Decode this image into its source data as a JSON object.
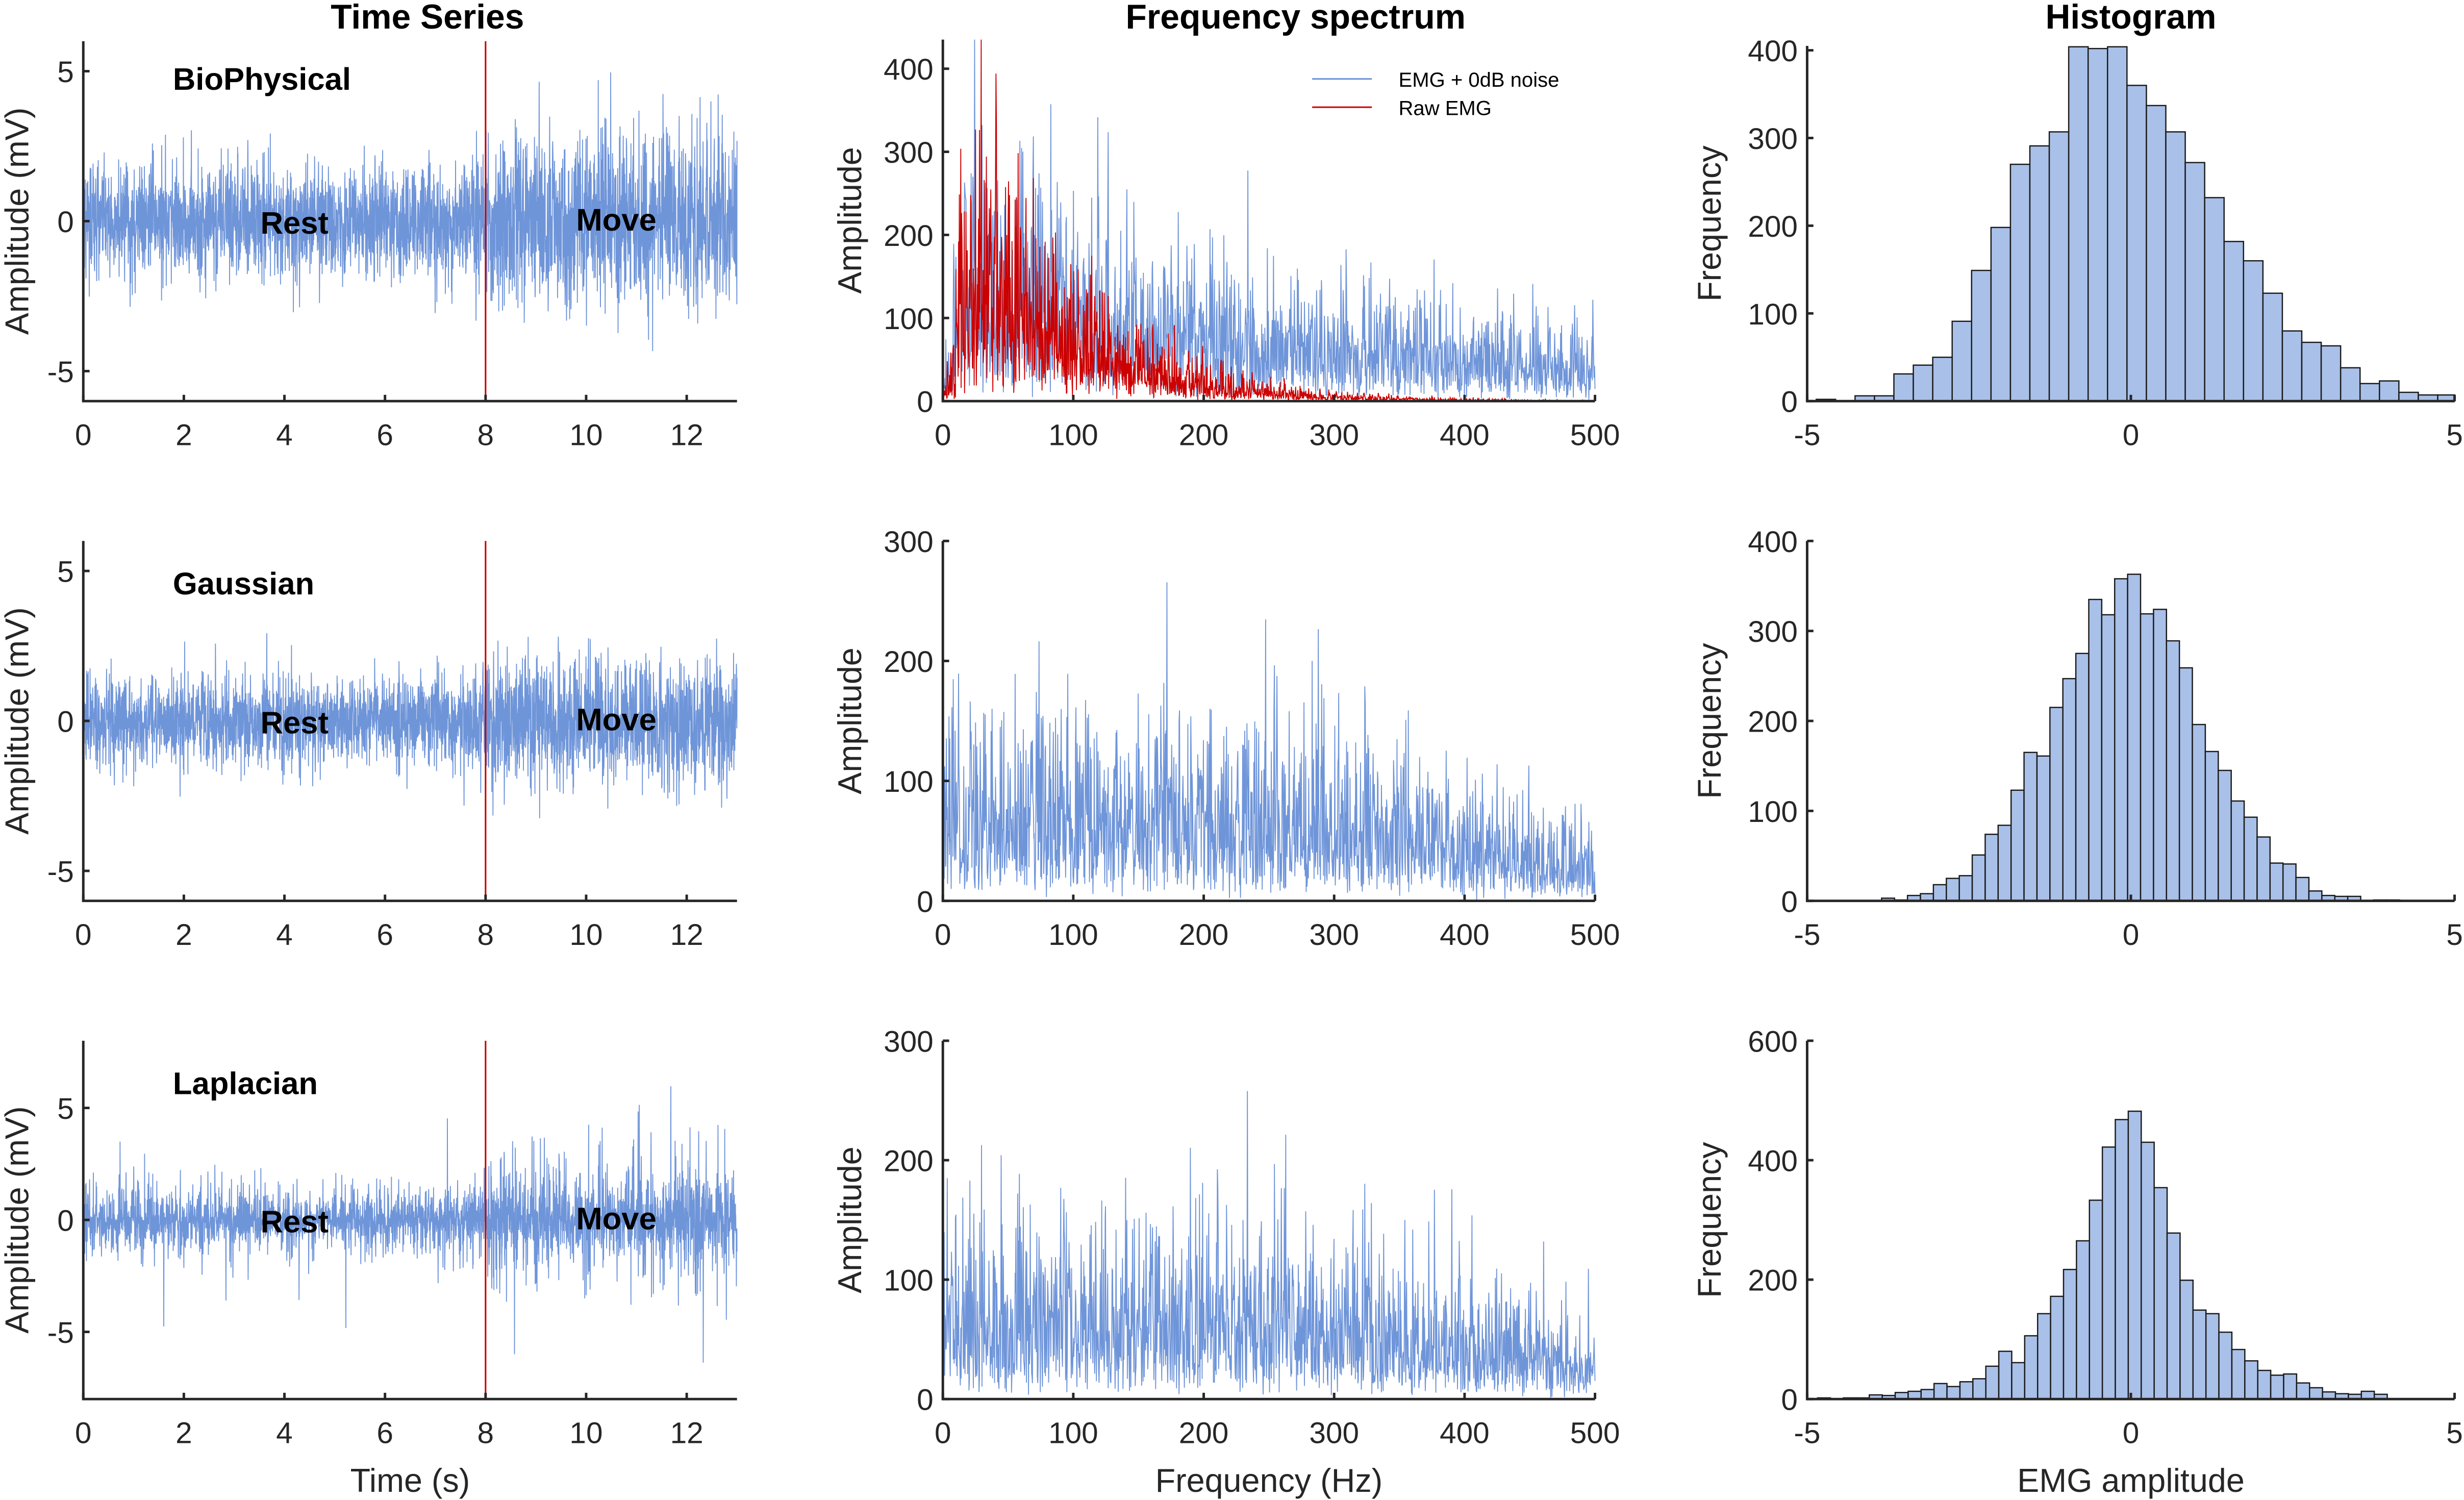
{
  "colors": {
    "signal": "#6f95d9",
    "raw_emg": "#cc0000",
    "event_line": "#cc0000",
    "bar_fill": "#a9c0e8",
    "bar_edge": "#1a1a1a",
    "axis": "#262626"
  },
  "chart_data": [
    {
      "id": "ts-biophysical",
      "type": "line",
      "title": "Time Series",
      "panel_label": "BioPhysical",
      "xlabel": "",
      "ylabel": "Amplitude (mV)",
      "xlim": [
        0,
        13
      ],
      "ylim": [
        -6,
        6
      ],
      "xticks": [
        0,
        2,
        4,
        6,
        8,
        10,
        12
      ],
      "yticks": [
        -5,
        0,
        5
      ],
      "event_marker_x": 8,
      "phase_labels": [
        "Rest",
        "Move"
      ],
      "series": [
        {
          "model": "biophysical"
        }
      ]
    },
    {
      "id": "spec-biophysical",
      "type": "line",
      "title": "Frequency spectrum",
      "xlabel": "",
      "ylabel": "Amplitude",
      "xlim": [
        0,
        500
      ],
      "ylim": [
        0,
        435
      ],
      "xticks": [
        0,
        100,
        200,
        300,
        400,
        500
      ],
      "yticks": [
        0,
        100,
        200,
        300,
        400
      ],
      "legend_position": "top-right",
      "series": [
        {
          "name": "EMG + 0dB noise",
          "color": "#6f95d9"
        },
        {
          "name": "Raw EMG",
          "color": "#cc0000"
        }
      ]
    },
    {
      "id": "hist-biophysical",
      "type": "bar",
      "title": "Histogram",
      "xlabel": "",
      "ylabel": "Frequency",
      "xlim": [
        -5,
        5
      ],
      "ylim": [
        0,
        405
      ],
      "xticks": [
        -5,
        0,
        5
      ],
      "yticks": [
        0,
        100,
        200,
        300,
        400
      ],
      "bins": {
        "start": -4.86,
        "width": 0.3,
        "counts": [
          2,
          0,
          6,
          6,
          31,
          41,
          50,
          91,
          149,
          198,
          270,
          291,
          307,
          404,
          402,
          404,
          360,
          337,
          307,
          272,
          232,
          182,
          160,
          123,
          80,
          67,
          63,
          38,
          20,
          23,
          10,
          7,
          7
        ]
      }
    },
    {
      "id": "ts-gaussian",
      "type": "line",
      "panel_label": "Gaussian",
      "xlabel": "",
      "ylabel": "Amplitude (mV)",
      "xlim": [
        0,
        13
      ],
      "ylim": [
        -6,
        6
      ],
      "xticks": [
        0,
        2,
        4,
        6,
        8,
        10,
        12
      ],
      "yticks": [
        -5,
        0,
        5
      ],
      "event_marker_x": 8,
      "phase_labels": [
        "Rest",
        "Move"
      ],
      "series": [
        {
          "model": "gaussian"
        }
      ]
    },
    {
      "id": "spec-gaussian",
      "type": "line",
      "xlabel": "",
      "ylabel": "Amplitude",
      "xlim": [
        0,
        500
      ],
      "ylim": [
        0,
        300
      ],
      "xticks": [
        0,
        100,
        200,
        300,
        400,
        500
      ],
      "yticks": [
        0,
        100,
        200,
        300
      ]
    },
    {
      "id": "hist-gaussian",
      "type": "bar",
      "xlabel": "",
      "ylabel": "Frequency",
      "xlim": [
        -5,
        5
      ],
      "ylim": [
        0,
        400
      ],
      "xticks": [
        -5,
        0,
        5
      ],
      "yticks": [
        0,
        100,
        200,
        300,
        400
      ],
      "bins": {
        "start": -3.85,
        "width": 0.2,
        "counts": [
          3,
          1,
          6,
          8,
          18,
          25,
          28,
          51,
          74,
          84,
          123,
          165,
          161,
          215,
          247,
          275,
          335,
          318,
          358,
          363,
          319,
          324,
          289,
          259,
          196,
          166,
          145,
          111,
          93,
          71,
          42,
          41,
          26,
          11,
          6,
          5,
          5,
          0,
          1,
          1
        ]
      }
    },
    {
      "id": "ts-laplacian",
      "type": "line",
      "panel_label": "Laplacian",
      "xlabel": "Time (s)",
      "ylabel": "Amplitude (mV)",
      "xlim": [
        0,
        13
      ],
      "ylim": [
        -8,
        8
      ],
      "xticks": [
        0,
        2,
        4,
        6,
        8,
        10,
        12
      ],
      "yticks": [
        -5,
        0,
        5
      ],
      "event_marker_x": 8,
      "phase_labels": [
        "Rest",
        "Move"
      ],
      "series": [
        {
          "model": "laplacian"
        }
      ]
    },
    {
      "id": "spec-laplacian",
      "type": "line",
      "xlabel": "Frequency (Hz)",
      "ylabel": "Amplitude",
      "xlim": [
        0,
        500
      ],
      "ylim": [
        0,
        300
      ],
      "xticks": [
        0,
        100,
        200,
        300,
        400,
        500
      ],
      "yticks": [
        0,
        100,
        200,
        300
      ]
    },
    {
      "id": "hist-laplacian",
      "type": "bar",
      "xlabel": "EMG amplitude",
      "ylabel": "Frequency",
      "xlim": [
        -5,
        5
      ],
      "ylim": [
        0,
        600
      ],
      "xticks": [
        -5,
        0,
        5
      ],
      "yticks": [
        0,
        200,
        400,
        600
      ],
      "bins": {
        "start": -4.84,
        "width": 0.2,
        "counts": [
          2,
          0,
          2,
          2,
          7,
          6,
          11,
          13,
          16,
          26,
          21,
          29,
          34,
          55,
          80,
          61,
          106,
          143,
          172,
          217,
          265,
          333,
          422,
          468,
          482,
          430,
          354,
          278,
          199,
          149,
          143,
          112,
          83,
          64,
          48,
          40,
          42,
          27,
          19,
          12,
          9,
          8,
          13,
          8
        ]
      }
    }
  ]
}
